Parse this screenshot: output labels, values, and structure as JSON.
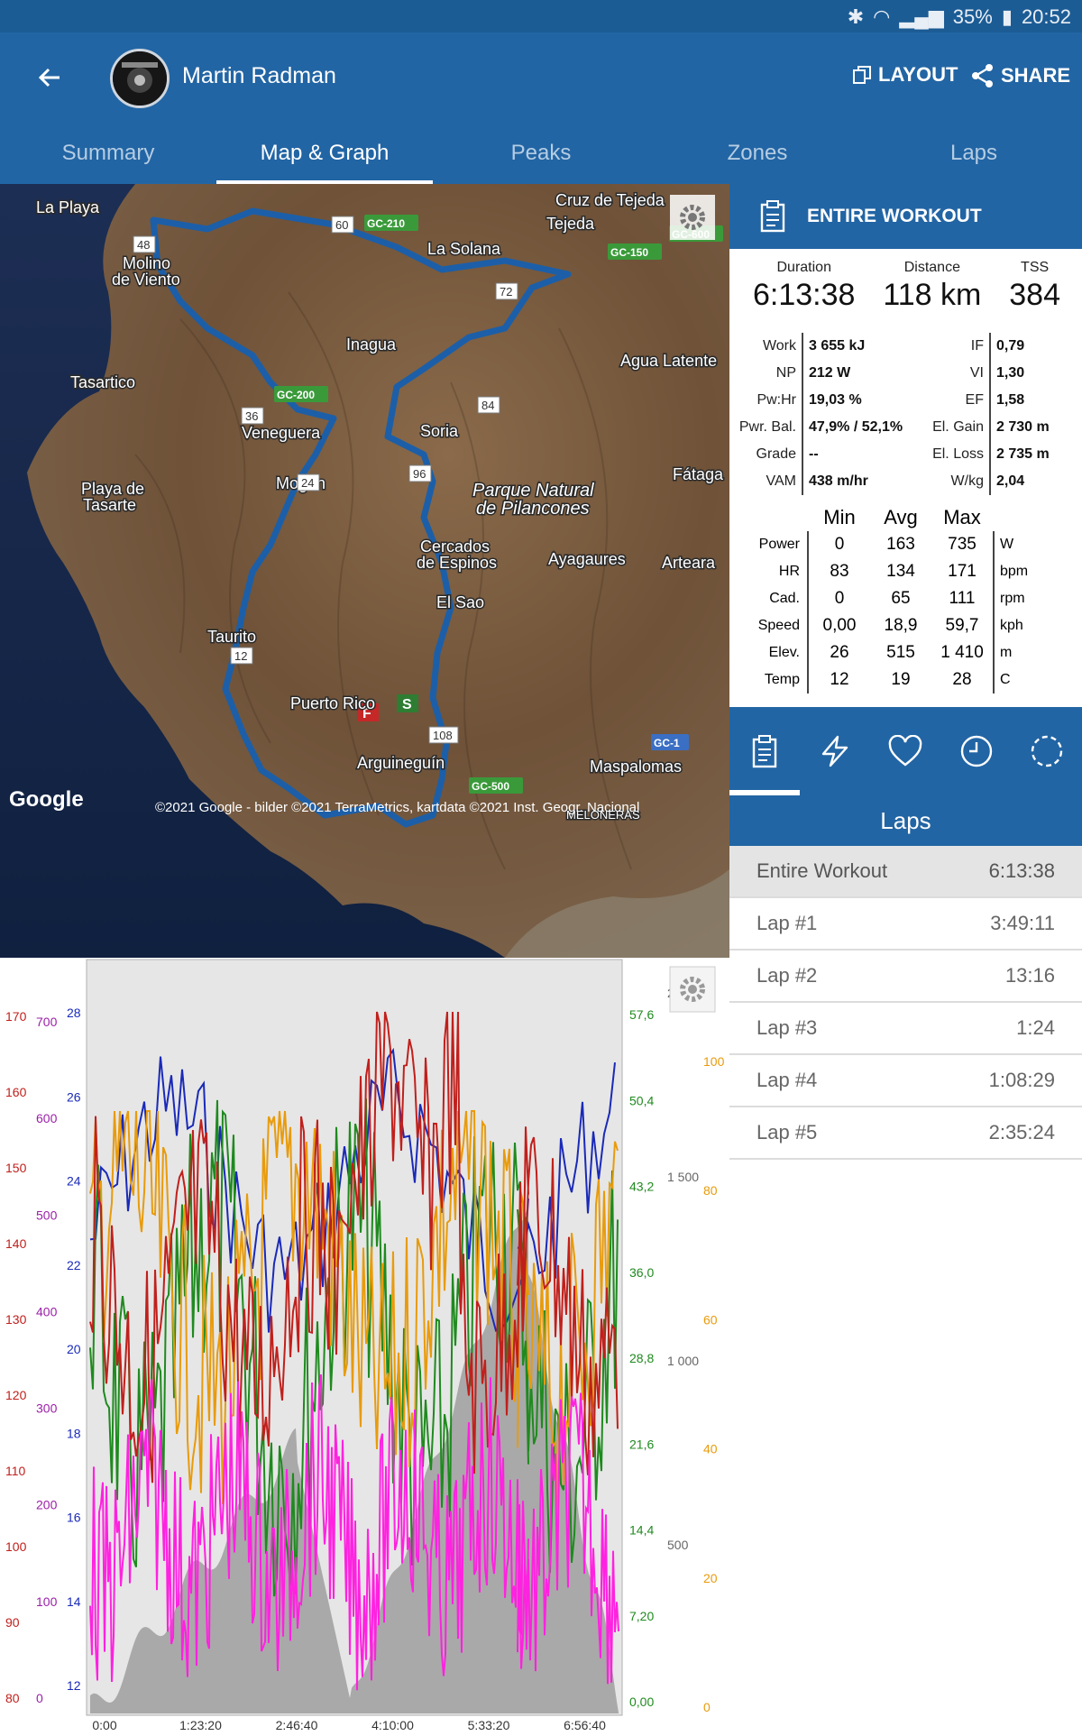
{
  "status_bar": {
    "battery": "35%",
    "time": "20:52"
  },
  "header": {
    "athlete_name": "Martin Radman",
    "layout_label": "LAYOUT",
    "share_label": "SHARE"
  },
  "tabs": [
    {
      "label": "Summary"
    },
    {
      "label": "Map & Graph"
    },
    {
      "label": "Peaks"
    },
    {
      "label": "Zones"
    },
    {
      "label": "Laps"
    }
  ],
  "map": {
    "places": [
      {
        "name": "La Playa"
      },
      {
        "name": "Molino"
      },
      {
        "name": "de Viento"
      },
      {
        "name": "Cruz de Tejeda"
      },
      {
        "name": "Tejeda"
      },
      {
        "name": "La Solana"
      },
      {
        "name": "Inagua"
      },
      {
        "name": "Agua Latente"
      },
      {
        "name": "Tasartico"
      },
      {
        "name": "Veneguera"
      },
      {
        "name": "Soria"
      },
      {
        "name": "Fátaga"
      },
      {
        "name": "Mogán"
      },
      {
        "name": "Playa de"
      },
      {
        "name": "Tasarte"
      },
      {
        "name": "Parque Natural"
      },
      {
        "name": "de Pilancones"
      },
      {
        "name": "Cercados"
      },
      {
        "name": "de Espinos"
      },
      {
        "name": "Ayagaures"
      },
      {
        "name": "Arteara"
      },
      {
        "name": "El Sao"
      },
      {
        "name": "Taurito"
      },
      {
        "name": "Puerto Rico"
      },
      {
        "name": "Arguineguín"
      },
      {
        "name": "Maspalomas"
      },
      {
        "name": "MELONERAS"
      }
    ],
    "road_labels": [
      "GC-210",
      "GC-600",
      "GC-150",
      "GC-200",
      "GC-1",
      "GC-500"
    ],
    "km_markers": [
      "48",
      "60",
      "72",
      "84",
      "36",
      "24",
      "96",
      "12",
      "108"
    ],
    "finish_flag": "F",
    "start_flag": "S",
    "logo": "Google",
    "attribution": "©2021 Google - bilder ©2021 TerraMetrics, kartdata ©2021 Inst. Geogr. Nacional"
  },
  "entire_workout": {
    "title": "ENTIRE WORKOUT",
    "duration_label": "Duration",
    "duration": "6:13:38",
    "distance_label": "Distance",
    "distance": "118 km",
    "tss_label": "TSS",
    "tss": "384",
    "metrics": [
      {
        "l1": "Work",
        "v1": "3 655 kJ",
        "l2": "IF",
        "v2": "0,79"
      },
      {
        "l1": "NP",
        "v1": "212 W",
        "l2": "VI",
        "v2": "1,30"
      },
      {
        "l1": "Pw:Hr",
        "v1": "19,03 %",
        "l2": "EF",
        "v2": "1,58"
      },
      {
        "l1": "Pwr. Bal.",
        "v1": "47,9% / 52,1%",
        "l2": "El. Gain",
        "v2": "2 730 m"
      },
      {
        "l1": "Grade",
        "v1": "--",
        "l2": "El. Loss",
        "v2": "2 735 m"
      },
      {
        "l1": "VAM",
        "v1": "438 m/hr",
        "l2": "W/kg",
        "v2": "2,04"
      }
    ],
    "stats_headers": {
      "min": "Min",
      "avg": "Avg",
      "max": "Max"
    },
    "stats": [
      {
        "label": "Power",
        "min": "0",
        "avg": "163",
        "max": "735",
        "unit": "W"
      },
      {
        "label": "HR",
        "min": "83",
        "avg": "134",
        "max": "171",
        "unit": "bpm"
      },
      {
        "label": "Cad.",
        "min": "0",
        "avg": "65",
        "max": "111",
        "unit": "rpm"
      },
      {
        "label": "Speed",
        "min": "0,00",
        "avg": "18,9",
        "max": "59,7",
        "unit": "kph"
      },
      {
        "label": "Elev.",
        "min": "26",
        "avg": "515",
        "max": "1 410",
        "unit": "m"
      },
      {
        "label": "Temp",
        "min": "12",
        "avg": "19",
        "max": "28",
        "unit": "C"
      }
    ]
  },
  "icon_tabs": [
    "clipboard-icon",
    "lightning-icon",
    "heart-icon",
    "clock-icon",
    "dashed-circle-icon"
  ],
  "laps_title": "Laps",
  "laps": [
    {
      "name": "Entire Workout",
      "time": "6:13:38"
    },
    {
      "name": "Lap #1",
      "time": "3:49:11"
    },
    {
      "name": "Lap #2",
      "time": "13:16"
    },
    {
      "name": "Lap #3",
      "time": "1:24"
    },
    {
      "name": "Lap #4",
      "time": "1:08:29"
    },
    {
      "name": "Lap #5",
      "time": "2:35:24"
    }
  ],
  "chart_data": {
    "type": "line",
    "x_ticks": [
      "0:00",
      "1:23:20",
      "2:46:40",
      "4:10:00",
      "5:33:20",
      "6:56:40"
    ],
    "axes": {
      "hr": {
        "color": "#c0201c",
        "ticks": [
          "80",
          "90",
          "100",
          "110",
          "120",
          "130",
          "140",
          "150",
          "160",
          "170"
        ]
      },
      "power": {
        "color": "#9b1fa8",
        "ticks": [
          "0",
          "100",
          "200",
          "300",
          "400",
          "500",
          "600",
          "700"
        ]
      },
      "cadence_axis": {
        "color": "#1a2ab8",
        "ticks": [
          "12",
          "14",
          "16",
          "18",
          "20",
          "22",
          "24",
          "26",
          "28"
        ]
      },
      "speed": {
        "color": "#1f8a1f",
        "ticks": [
          "0,00",
          "7,20",
          "14,4",
          "21,6",
          "28,8",
          "36,0",
          "43,2",
          "50,4",
          "57,6"
        ]
      },
      "elevation": {
        "color": "#666666",
        "ticks": [
          "500",
          "1 000",
          "1 500",
          "2 0"
        ]
      },
      "temperature": {
        "color": "#e89b0c",
        "ticks": [
          "0",
          "20",
          "40",
          "60",
          "80",
          "100"
        ]
      }
    },
    "series": [
      {
        "color": "#c0201c"
      },
      {
        "color": "#e89b0c"
      },
      {
        "color": "#1f8a1f"
      },
      {
        "color": "#ff22e0"
      },
      {
        "color": "#1a2ab8"
      },
      {
        "color": "#9e9e9e"
      }
    ]
  }
}
